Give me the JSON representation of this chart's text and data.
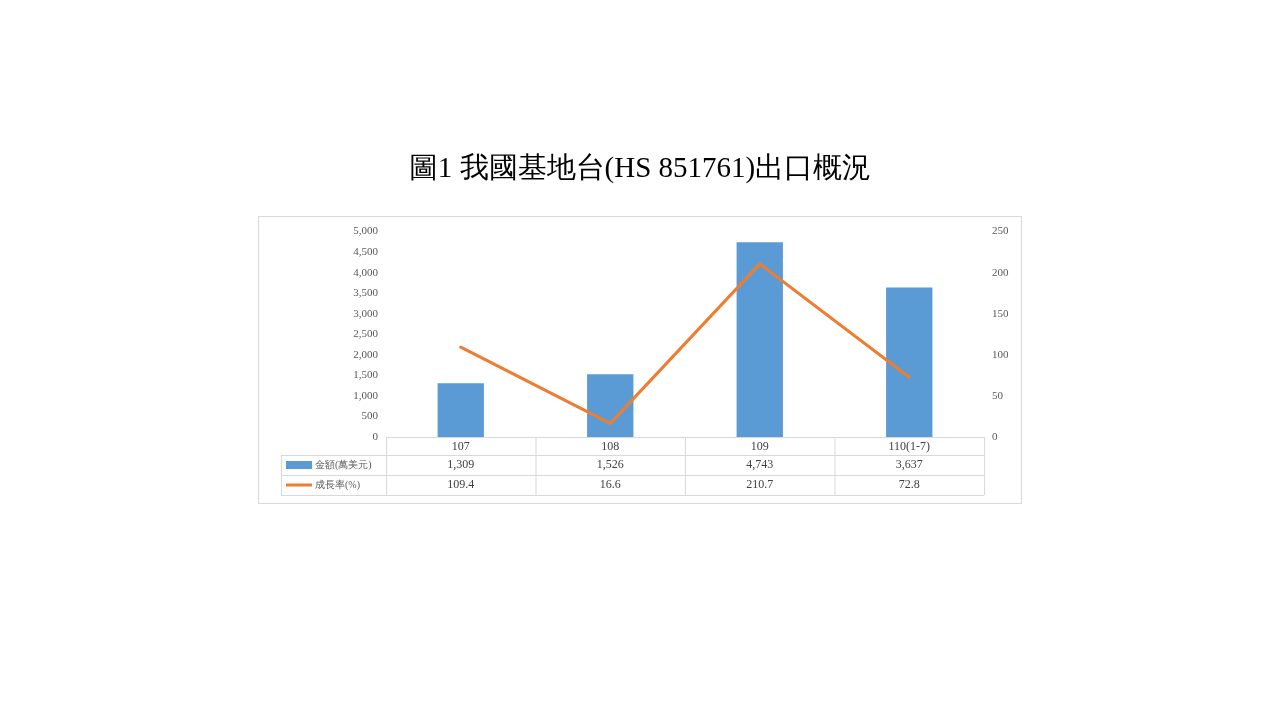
{
  "chart_data": {
    "type": "bar",
    "title": "圖1 我國基地台(HS 851761)出口概況",
    "categories": [
      "107",
      "108",
      "109",
      "110(1-7)"
    ],
    "series": [
      {
        "name": "金額(萬美元)",
        "color": "#5b9bd5",
        "values": [
          1309,
          1526,
          4743,
          3637
        ],
        "value_labels": [
          "1,309",
          "1,526",
          "4,743",
          "3,637"
        ]
      },
      {
        "name": "成長率(%)",
        "type": "line",
        "axis": "y2",
        "color": "#ed7d31",
        "values": [
          109.4,
          16.6,
          210.7,
          72.8
        ],
        "value_labels": [
          "109.4",
          "16.6",
          "210.7",
          "72.8"
        ]
      }
    ],
    "ylim": [
      0,
      5000
    ],
    "yticks": [
      0,
      500,
      {
        "value": 1000,
        "label": "1,000"
      },
      {
        "value": 1500,
        "label": "1,500"
      },
      {
        "value": 2000,
        "label": "2,000"
      },
      {
        "value": 2500,
        "label": "2,500"
      },
      {
        "value": 3000,
        "label": "3,000"
      },
      {
        "value": 3500,
        "label": "3,500"
      },
      {
        "value": 4000,
        "label": "4,000"
      },
      {
        "value": 4500,
        "label": "4,500"
      },
      {
        "value": 5000,
        "label": "5,000"
      }
    ],
    "y2lim": [
      0,
      250
    ],
    "y2ticks": [
      0,
      50,
      100,
      150,
      200,
      250
    ],
    "grid": false,
    "legend": "bottom left",
    "marker": "none",
    "line_style": "solid"
  }
}
